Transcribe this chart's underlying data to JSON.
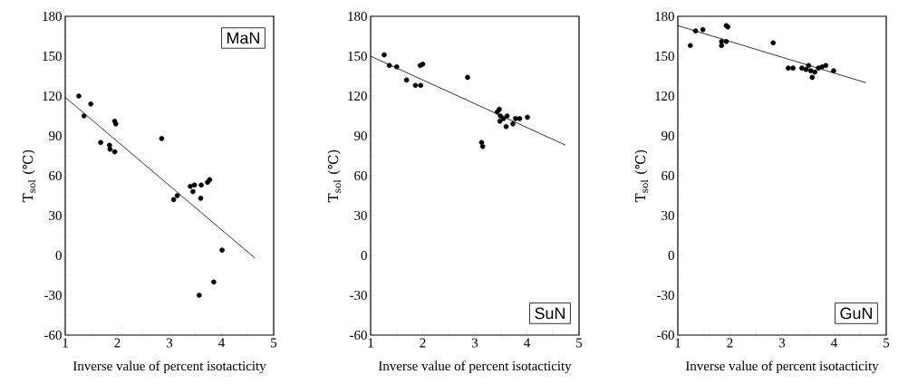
{
  "chart_data": [
    {
      "type": "scatter",
      "title": "MaN",
      "xlabel": "Inverse value of percent isotacticity",
      "ylabel": "T$_{sol}$ (℃)",
      "xlim": [
        1,
        5
      ],
      "ylim": [
        -60,
        180
      ],
      "xticks": [
        1,
        2,
        3,
        4,
        5
      ],
      "yticks": [
        -60,
        -30,
        0,
        30,
        60,
        90,
        120,
        150,
        180
      ],
      "series": [
        {
          "marker": "circle",
          "color": "#000000",
          "x": [
            1.26,
            1.36,
            1.49,
            1.68,
            1.85,
            1.86,
            1.95,
            1.95,
            1.97,
            2.85,
            3.08,
            3.15,
            3.4,
            3.45,
            3.48,
            3.61,
            3.6,
            3.73,
            3.77,
            4.01,
            3.85,
            3.57
          ],
          "values": [
            120,
            105,
            114,
            85,
            83,
            80,
            78,
            101,
            99,
            88,
            42,
            45,
            52,
            48,
            53,
            53,
            43,
            55,
            57,
            4,
            -20,
            -30
          ]
        },
        {
          "type": "line",
          "marker": "none",
          "color": "#000000",
          "x": [
            1,
            4.64
          ],
          "values": [
            119,
            -2
          ]
        }
      ]
    },
    {
      "type": "scatter",
      "title": "SuN",
      "xlabel": "Inverse value of percent isotacticity",
      "ylabel": "T$_{sol}$ (℃)",
      "xlim": [
        1,
        5
      ],
      "ylim": [
        -60,
        180
      ],
      "xticks": [
        1,
        2,
        3,
        4,
        5
      ],
      "yticks": [
        -60,
        -30,
        0,
        30,
        60,
        90,
        120,
        150,
        180
      ],
      "series": [
        {
          "marker": "circle",
          "color": "#000000",
          "x": [
            1.26,
            1.36,
            1.5,
            1.69,
            1.86,
            1.96,
            1.95,
            2.0,
            2.86,
            3.13,
            3.15,
            3.43,
            3.47,
            3.49,
            3.48,
            3.55,
            3.62,
            3.6,
            3.73,
            3.78,
            3.86,
            4.01
          ],
          "values": [
            151,
            143,
            142,
            132,
            128,
            128,
            143,
            144,
            134,
            85,
            82,
            108,
            110,
            105,
            101,
            103,
            105,
            97,
            99,
            103,
            103,
            104
          ]
        },
        {
          "type": "line",
          "marker": "none",
          "color": "#000000",
          "x": [
            1,
            4.74
          ],
          "values": [
            150,
            83
          ]
        }
      ]
    },
    {
      "type": "scatter",
      "title": "GuN",
      "xlabel": "Inverse value of percent isotacticity",
      "ylabel": "T$_{sol}$ (℃)",
      "xlim": [
        1,
        5
      ],
      "ylim": [
        -60,
        180
      ],
      "xticks": [
        1,
        2,
        3,
        4,
        5
      ],
      "yticks": [
        -60,
        -30,
        0,
        30,
        60,
        90,
        120,
        150,
        180
      ],
      "series": [
        {
          "marker": "circle",
          "color": "#000000",
          "x": [
            1.24,
            1.34,
            1.48,
            1.84,
            1.84,
            1.93,
            1.93,
            1.96,
            2.83,
            3.12,
            3.21,
            3.38,
            3.51,
            3.46,
            3.55,
            3.58,
            3.63,
            3.7,
            3.77,
            3.84,
            3.99
          ],
          "values": [
            158,
            169,
            170,
            161,
            158,
            161,
            173,
            172,
            160,
            141,
            141,
            141,
            143,
            140,
            139,
            134,
            138,
            141,
            142,
            143,
            139
          ]
        },
        {
          "type": "line",
          "marker": "none",
          "color": "#000000",
          "x": [
            1,
            4.61
          ],
          "values": [
            173,
            130
          ]
        }
      ]
    }
  ]
}
